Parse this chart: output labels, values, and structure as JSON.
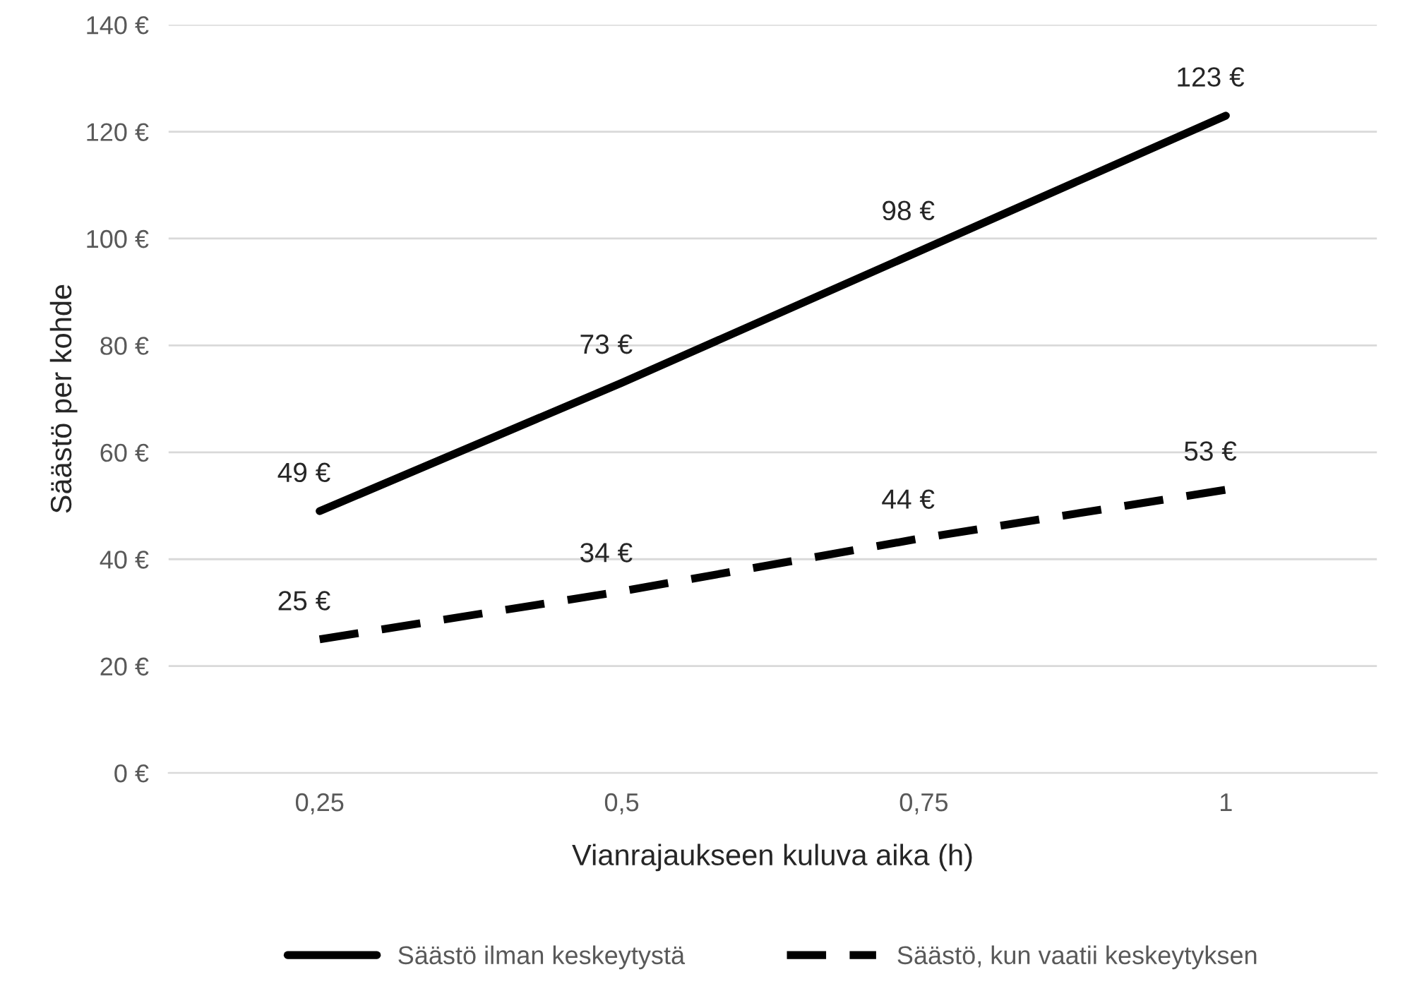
{
  "chart_data": {
    "type": "line",
    "xlabel": "Vianrajaukseen kuluva aika (h)",
    "ylabel": "Säästö per kohde",
    "categories": [
      "0,25",
      "0,5",
      "0,75",
      "1"
    ],
    "series": [
      {
        "name": "Säästö ilman keskeytystä",
        "color": "#000000",
        "line_style": "solid",
        "values": [
          49,
          73,
          98,
          123
        ],
        "value_labels": [
          "49 €",
          "73 €",
          "98 €",
          "123 €"
        ]
      },
      {
        "name": "Säästö, kun vaatii keskeytyksen",
        "color": "#000000",
        "line_style": "dashed",
        "values": [
          25,
          34,
          44,
          53
        ],
        "value_labels": [
          "25 €",
          "34 €",
          "44 €",
          "53 €"
        ]
      }
    ],
    "ylim": [
      0,
      140
    ],
    "yticks": [
      {
        "value": 0,
        "label": "0 €"
      },
      {
        "value": 20,
        "label": "20 €"
      },
      {
        "value": 40,
        "label": "40 €"
      },
      {
        "value": 60,
        "label": "60 €"
      },
      {
        "value": 80,
        "label": "80 €"
      },
      {
        "value": 100,
        "label": "100 €"
      },
      {
        "value": 120,
        "label": "120 €"
      },
      {
        "value": 140,
        "label": "140 €"
      }
    ],
    "grid": "y",
    "legend": "bottom",
    "marker": "none"
  }
}
